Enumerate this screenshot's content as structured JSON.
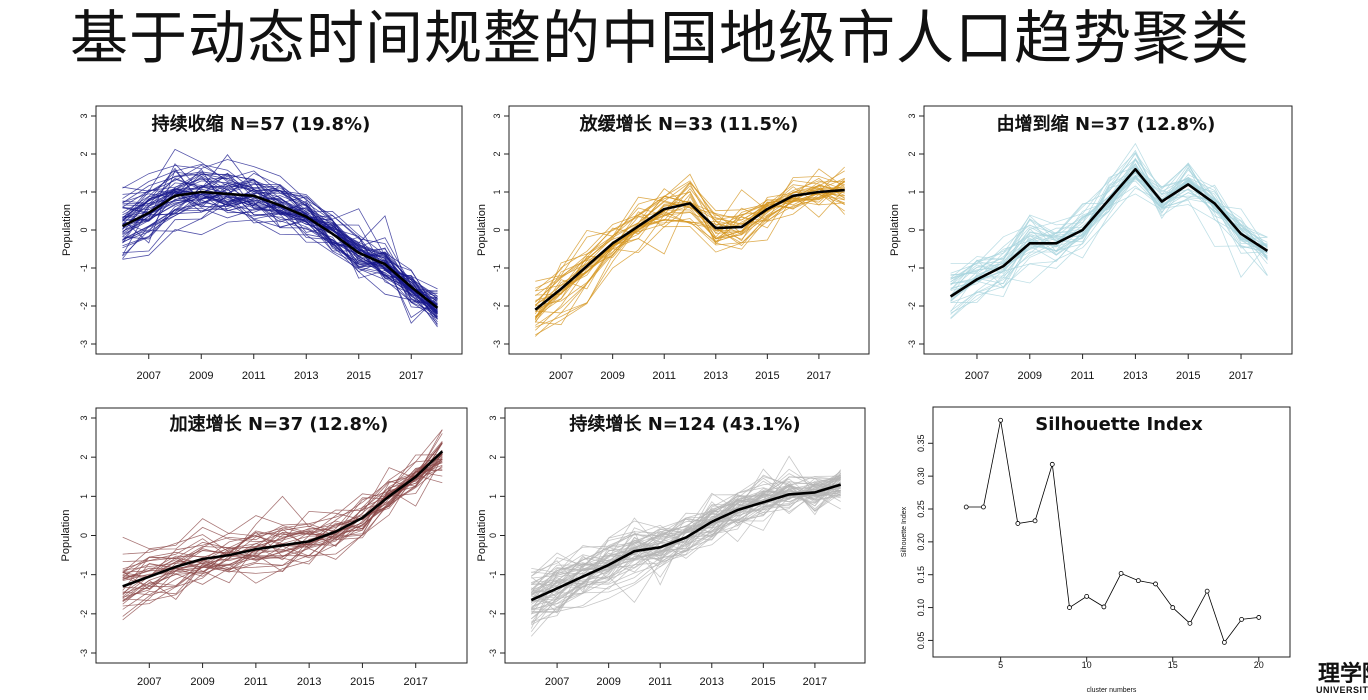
{
  "slide": {
    "title": "基于动态时间规整的中国地级市人口趋势聚类"
  },
  "logo": {
    "main": "理学院",
    "sub": "UNIVERSITY"
  },
  "chart_data": [
    {
      "type": "line",
      "title": "持续收缩  N=57 (19.8%)",
      "ylabel": "Population",
      "xlabel": "",
      "x": [
        2006,
        2007,
        2008,
        2009,
        2010,
        2011,
        2012,
        2013,
        2014,
        2015,
        2016,
        2017,
        2018
      ],
      "xticks": [
        2007,
        2009,
        2011,
        2013,
        2015,
        2017
      ],
      "yticks": [
        -3,
        -2,
        -1,
        0,
        1,
        2,
        3
      ],
      "ylim": [
        -3,
        3
      ],
      "color": "#1a1a8c",
      "member_count": 57,
      "mean_series": [
        0.1,
        0.45,
        0.9,
        1.0,
        0.95,
        0.9,
        0.65,
        0.35,
        -0.1,
        -0.6,
        -0.9,
        -1.5,
        -2.05
      ]
    },
    {
      "type": "line",
      "title": "放缓增长  N=33 (11.5%)",
      "ylabel": "Population",
      "xlabel": "",
      "x": [
        2006,
        2007,
        2008,
        2009,
        2010,
        2011,
        2012,
        2013,
        2014,
        2015,
        2016,
        2017,
        2018
      ],
      "xticks": [
        2007,
        2009,
        2011,
        2013,
        2015,
        2017
      ],
      "yticks": [
        -3,
        -2,
        -1,
        0,
        1,
        2,
        3
      ],
      "ylim": [
        -3,
        3
      ],
      "color": "#d4941e",
      "member_count": 33,
      "mean_series": [
        -2.1,
        -1.55,
        -0.95,
        -0.35,
        0.1,
        0.55,
        0.7,
        0.05,
        0.08,
        0.55,
        0.9,
        1.0,
        1.05
      ]
    },
    {
      "type": "line",
      "title": "由增到缩  N=37 (12.8%)",
      "ylabel": "Population",
      "xlabel": "",
      "x": [
        2006,
        2007,
        2008,
        2009,
        2010,
        2011,
        2012,
        2013,
        2014,
        2015,
        2016,
        2017,
        2018
      ],
      "xticks": [
        2007,
        2009,
        2011,
        2013,
        2015,
        2017
      ],
      "yticks": [
        -3,
        -2,
        -1,
        0,
        1,
        2,
        3
      ],
      "ylim": [
        -3,
        3
      ],
      "color": "#a8d4de",
      "member_count": 37,
      "mean_series": [
        -1.75,
        -1.3,
        -0.95,
        -0.35,
        -0.35,
        0.0,
        0.8,
        1.6,
        0.75,
        1.2,
        0.7,
        -0.1,
        -0.55
      ]
    },
    {
      "type": "line",
      "title": "加速增长  N=37 (12.8%)",
      "ylabel": "Population",
      "xlabel": "",
      "x": [
        2006,
        2007,
        2008,
        2009,
        2010,
        2011,
        2012,
        2013,
        2014,
        2015,
        2016,
        2017,
        2018
      ],
      "xticks": [
        2007,
        2009,
        2011,
        2013,
        2015,
        2017
      ],
      "yticks": [
        -3,
        -2,
        -1,
        0,
        1,
        2,
        3
      ],
      "ylim": [
        -3,
        3
      ],
      "color": "#8c4a4a",
      "member_count": 37,
      "mean_series": [
        -1.3,
        -1.05,
        -0.8,
        -0.6,
        -0.5,
        -0.35,
        -0.25,
        -0.15,
        0.1,
        0.45,
        1.0,
        1.5,
        2.15
      ]
    },
    {
      "type": "line",
      "title": "持续增长  N=124 (43.1%)",
      "ylabel": "Population",
      "xlabel": "",
      "x": [
        2006,
        2007,
        2008,
        2009,
        2010,
        2011,
        2012,
        2013,
        2014,
        2015,
        2016,
        2017,
        2018
      ],
      "xticks": [
        2007,
        2009,
        2011,
        2013,
        2015,
        2017
      ],
      "yticks": [
        -3,
        -2,
        -1,
        0,
        1,
        2,
        3
      ],
      "ylim": [
        -3,
        3
      ],
      "color": "#b4b4b4",
      "member_count": 124,
      "mean_series": [
        -1.65,
        -1.35,
        -1.05,
        -0.75,
        -0.4,
        -0.3,
        -0.05,
        0.35,
        0.65,
        0.85,
        1.05,
        1.1,
        1.3
      ]
    },
    {
      "type": "line",
      "title": "Silhouette Index",
      "ylabel": "Silhouette Index",
      "xlabel": "cluster numbers",
      "x": [
        3,
        4,
        5,
        6,
        7,
        8,
        9,
        10,
        11,
        12,
        13,
        14,
        15,
        16,
        17,
        18,
        19,
        20
      ],
      "values": [
        0.253,
        0.253,
        0.385,
        0.228,
        0.232,
        0.318,
        0.1,
        0.117,
        0.101,
        0.152,
        0.141,
        0.136,
        0.1,
        0.076,
        0.125,
        0.047,
        0.082,
        0.085
      ],
      "xticks": [
        5,
        10,
        15,
        20
      ],
      "yticks": [
        0.05,
        0.1,
        0.15,
        0.2,
        0.25,
        0.3,
        0.35
      ],
      "xlim": [
        2,
        21
      ],
      "ylim": [
        0.04,
        0.39
      ],
      "color": "#000000"
    }
  ]
}
